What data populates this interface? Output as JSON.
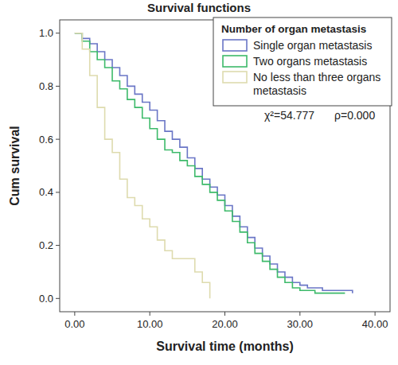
{
  "chart_data": {
    "type": "step",
    "title": "Survival functions",
    "x_label": "Survival time (months)",
    "y_label": "Cum survival",
    "legend_title": "Number of organ metastasis",
    "legend": "top-right",
    "annotations": [
      "χ²=54.777",
      "ρ=0.000"
    ],
    "xlim": [
      -2,
      42
    ],
    "ylim": [
      -0.05,
      1.05
    ],
    "xticks": [
      {
        "value": 0,
        "label": "0.00"
      },
      {
        "value": 10,
        "label": "10.00"
      },
      {
        "value": 20,
        "label": "20.00"
      },
      {
        "value": 30,
        "label": "30.00"
      },
      {
        "value": 40,
        "label": "40.00"
      }
    ],
    "yticks": [
      {
        "value": 0,
        "label": "0.0"
      },
      {
        "value": 0.2,
        "label": "0.2"
      },
      {
        "value": 0.4,
        "label": "0.4"
      },
      {
        "value": 0.6,
        "label": "0.6"
      },
      {
        "value": 0.8,
        "label": "0.8"
      },
      {
        "value": 1,
        "label": "1.0"
      }
    ],
    "series": [
      {
        "name": "Single organ metastasis",
        "color": "#6a76c6",
        "x": [
          0,
          1,
          2,
          3,
          4,
          5,
          6,
          7,
          8,
          9,
          10,
          11,
          12,
          13,
          14,
          15,
          16,
          17,
          18,
          19,
          20,
          21,
          22,
          23,
          24,
          25,
          26,
          27,
          28,
          29,
          30,
          31,
          33,
          37
        ],
        "values": [
          1,
          0.98,
          0.96,
          0.93,
          0.9,
          0.87,
          0.84,
          0.8,
          0.77,
          0.74,
          0.71,
          0.67,
          0.63,
          0.6,
          0.57,
          0.53,
          0.49,
          0.45,
          0.42,
          0.39,
          0.35,
          0.31,
          0.27,
          0.23,
          0.19,
          0.16,
          0.13,
          0.1,
          0.08,
          0.06,
          0.05,
          0.04,
          0.03,
          0.02
        ]
      },
      {
        "name": "Two organs metastasis",
        "color": "#3dba6a",
        "x": [
          0,
          1,
          2,
          3,
          4,
          5,
          6,
          7,
          8,
          9,
          10,
          11,
          12,
          13,
          14,
          15,
          16,
          17,
          18,
          19,
          20,
          21,
          22,
          23,
          24,
          25,
          26,
          27,
          28,
          29,
          30,
          32,
          36
        ],
        "values": [
          1,
          0.97,
          0.93,
          0.9,
          0.87,
          0.82,
          0.79,
          0.75,
          0.72,
          0.68,
          0.64,
          0.6,
          0.56,
          0.55,
          0.52,
          0.5,
          0.46,
          0.43,
          0.4,
          0.37,
          0.33,
          0.29,
          0.25,
          0.21,
          0.17,
          0.14,
          0.11,
          0.08,
          0.06,
          0.04,
          0.03,
          0.02,
          0.02
        ]
      },
      {
        "name": "No less than three organs metastasis",
        "color": "#dedbae",
        "x": [
          0,
          1,
          2,
          3,
          4,
          5,
          6,
          7,
          8,
          9,
          10,
          11,
          12,
          13,
          15,
          16,
          17,
          18
        ],
        "values": [
          1,
          0.94,
          0.84,
          0.72,
          0.6,
          0.55,
          0.45,
          0.38,
          0.35,
          0.3,
          0.27,
          0.22,
          0.18,
          0.15,
          0.15,
          0.1,
          0.06,
          0
        ]
      }
    ]
  }
}
